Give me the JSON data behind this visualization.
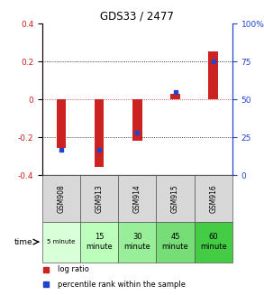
{
  "title": "GDS33 / 2477",
  "samples": [
    "GSM908",
    "GSM913",
    "GSM914",
    "GSM915",
    "GSM916"
  ],
  "time_labels": [
    "5 minute",
    "15\nminute",
    "30\nminute",
    "45\nminute",
    "60\nminute"
  ],
  "log_ratios": [
    -0.255,
    -0.355,
    -0.215,
    0.028,
    0.255
  ],
  "percentile_ranks": [
    17,
    17,
    28,
    55,
    75
  ],
  "ylim": [
    -0.4,
    0.4
  ],
  "right_ylim": [
    0,
    100
  ],
  "bar_color": "#cc2222",
  "marker_color": "#2244cc",
  "bg_color": "#d8d8d8",
  "time_colors": [
    "#d8ffd8",
    "#bbffbb",
    "#99ee99",
    "#77dd77",
    "#44cc44"
  ],
  "dotted_line_color": "#000000",
  "ref_line_color": "#cc2222"
}
